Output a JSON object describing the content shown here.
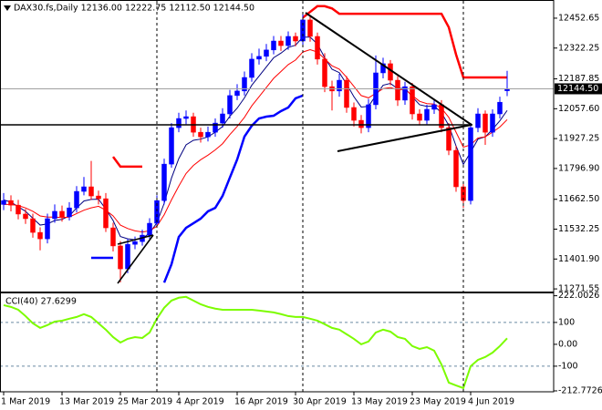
{
  "chart_data": [
    {
      "type": "candlestick",
      "title": "DAX30.fs,Daily  12136.00 12222.75 12112.50 12144.50",
      "categories": [
        "1 Mar 2019",
        null,
        null,
        null,
        null,
        null,
        null,
        null,
        "13 Mar 2019",
        null,
        null,
        null,
        null,
        null,
        null,
        null,
        "25 Mar 2019",
        null,
        null,
        null,
        null,
        null,
        null,
        null,
        "4 Apr 2019",
        null,
        null,
        null,
        null,
        null,
        null,
        null,
        "16 Apr 2019",
        null,
        null,
        null,
        null,
        null,
        null,
        null,
        "30 Apr 2019",
        null,
        null,
        null,
        null,
        null,
        null,
        null,
        "13 May 2019",
        null,
        null,
        null,
        null,
        null,
        null,
        null,
        "23 May 2019",
        null,
        null,
        null,
        null,
        null,
        null,
        null,
        "4 Jun 2019",
        null,
        null,
        null,
        null,
        null
      ],
      "open": [
        11640,
        11657,
        11637,
        11598,
        11578,
        11518,
        11490,
        11578,
        11610,
        11586,
        11625,
        11697,
        11717,
        11677,
        11665,
        11538,
        11459,
        11359,
        11466,
        11478,
        11506,
        11558,
        11657,
        11816,
        11975,
        12015,
        12023,
        11955,
        11935,
        11955,
        11995,
        12035,
        12115,
        12135,
        12194,
        12274,
        12286,
        12314,
        12353,
        12333,
        12373,
        12353,
        12445,
        12373,
        12274,
        12154,
        12135,
        12182,
        12063,
        12007,
        11975,
        12075,
        12214,
        12254,
        12182,
        12095,
        12154,
        12035,
        12007,
        12055,
        12075,
        11975,
        11876,
        11717,
        11657,
        11975,
        12035,
        11955,
        12035,
        12136
      ],
      "high": [
        11690,
        11680,
        11660,
        11620,
        11600,
        11540,
        11600,
        11640,
        11635,
        11650,
        11720,
        11760,
        11830,
        11700,
        11690,
        11560,
        11480,
        11490,
        11500,
        11530,
        11580,
        11680,
        11840,
        11995,
        12040,
        12050,
        12040,
        11975,
        11980,
        12015,
        12060,
        12140,
        12165,
        12220,
        12300,
        12320,
        12340,
        12375,
        12375,
        12395,
        12390,
        12480,
        12460,
        12390,
        12300,
        12180,
        12210,
        12200,
        12085,
        12030,
        12100,
        12290,
        12280,
        12270,
        12200,
        12175,
        12170,
        12055,
        12075,
        12100,
        12095,
        11995,
        11895,
        11735,
        11995,
        12060,
        12050,
        12055,
        12110,
        12222.75
      ],
      "low": [
        11615,
        11610,
        11575,
        11555,
        11495,
        11440,
        11470,
        11560,
        11565,
        11570,
        11605,
        11680,
        11660,
        11640,
        11520,
        11435,
        11300,
        11340,
        11445,
        11460,
        11490,
        11540,
        11640,
        11800,
        11955,
        11990,
        11935,
        11910,
        11915,
        11935,
        11975,
        12015,
        12095,
        12115,
        12175,
        12250,
        12265,
        12295,
        12310,
        12315,
        12330,
        12335,
        12350,
        12250,
        12130,
        12050,
        12110,
        12040,
        11980,
        11950,
        11955,
        12055,
        12190,
        12160,
        12070,
        12075,
        12010,
        11985,
        11990,
        12035,
        11955,
        11855,
        11695,
        11625,
        11640,
        11955,
        11900,
        11935,
        12015,
        12112.5
      ],
      "close": [
        11657,
        11637,
        11598,
        11578,
        11518,
        11490,
        11578,
        11610,
        11586,
        11625,
        11697,
        11717,
        11677,
        11665,
        11538,
        11459,
        11359,
        11466,
        11478,
        11506,
        11558,
        11657,
        11816,
        11975,
        12015,
        12023,
        11955,
        11935,
        11955,
        11995,
        12035,
        12115,
        12135,
        12194,
        12274,
        12286,
        12314,
        12353,
        12333,
        12373,
        12353,
        12445,
        12373,
        12274,
        12154,
        12135,
        12182,
        12063,
        12007,
        11975,
        12075,
        12214,
        12254,
        12182,
        12095,
        12154,
        12035,
        12007,
        12055,
        12075,
        11975,
        11876,
        11717,
        11657,
        11975,
        12035,
        11955,
        12035,
        12086,
        12144.5
      ],
      "up_color": "#0000ff",
      "down_color": "#ff0000",
      "last_price_label": "12144.50",
      "series": [
        {
          "color": "#000080",
          "width": 1,
          "values": [
            11660,
            11650,
            11630,
            11610,
            11580,
            11550,
            11555,
            11570,
            11575,
            11590,
            11625,
            11655,
            11662,
            11663,
            11620,
            11570,
            11500,
            11490,
            11486,
            11492,
            11515,
            11560,
            11645,
            11755,
            11840,
            11900,
            11920,
            11925,
            11935,
            11955,
            11980,
            12025,
            12060,
            12105,
            12160,
            12200,
            12240,
            12280,
            12300,
            12325,
            12335,
            12370,
            12370,
            12340,
            12280,
            12230,
            12215,
            12165,
            12110,
            12065,
            12068,
            12115,
            12160,
            12168,
            12145,
            12148,
            12110,
            12075,
            12068,
            12070,
            12040,
            11985,
            11895,
            11815,
            11868,
            11925,
            11935,
            11968,
            12005,
            12050
          ]
        },
        {
          "color": "#ff0000",
          "width": 1,
          "values": [
            11640,
            11640,
            11635,
            11625,
            11610,
            11590,
            11585,
            11585,
            11583,
            11585,
            11600,
            11615,
            11625,
            11632,
            11615,
            11590,
            11550,
            11535,
            11525,
            11520,
            11525,
            11545,
            11595,
            11660,
            11720,
            11775,
            11810,
            11835,
            11855,
            11878,
            11905,
            11945,
            11980,
            12020,
            12070,
            12110,
            12150,
            12190,
            12220,
            12250,
            12270,
            12305,
            12315,
            12305,
            12275,
            12245,
            12230,
            12195,
            12155,
            12115,
            12105,
            12125,
            12145,
            12150,
            12140,
            12142,
            12115,
            12090,
            12080,
            12078,
            12060,
            12020,
            11955,
            11890,
            11900,
            11930,
            11935,
            11955,
            11978,
            12010
          ]
        },
        {
          "color": "#0000ff",
          "width": 2.5,
          "values": [
            null,
            null,
            null,
            null,
            null,
            null,
            null,
            null,
            null,
            null,
            null,
            null,
            11407,
            11407,
            11407,
            11407,
            null,
            null,
            null,
            null,
            null,
            null,
            11299,
            11379,
            11498,
            11538,
            11558,
            11578,
            11610,
            11625,
            11677,
            11757,
            11836,
            11936,
            11983,
            12015,
            12023,
            12027,
            12047,
            12063,
            12103,
            12115,
            null,
            null,
            null,
            null,
            null,
            null,
            null,
            null,
            null,
            null,
            null,
            null,
            null,
            null,
            null,
            null,
            null,
            null,
            null,
            null,
            null,
            null,
            null,
            null,
            null,
            null,
            null,
            null
          ]
        },
        {
          "color": "#ff0000",
          "width": 2.5,
          "values": [
            null,
            null,
            null,
            null,
            null,
            null,
            null,
            null,
            null,
            null,
            null,
            null,
            null,
            null,
            null,
            11848,
            11805,
            11805,
            11805,
            11805,
            null,
            null,
            null,
            null,
            null,
            null,
            null,
            null,
            null,
            null,
            null,
            null,
            null,
            null,
            null,
            null,
            null,
            null,
            null,
            null,
            null,
            12455,
            12480,
            12505,
            12505,
            12495,
            12472,
            12472,
            12472,
            12472,
            12472,
            12472,
            12472,
            12472,
            12472,
            12472,
            12472,
            12472,
            12472,
            12472,
            12472,
            12413,
            12294,
            12194,
            12194,
            12194,
            12194,
            12194,
            12194,
            12194
          ]
        }
      ],
      "ylim": [
        11260,
        12520
      ],
      "yticks": [
        11271.55,
        {
          "value": 11401.9,
          "label": "11401.90"
        },
        11532.25,
        {
          "value": 11662.5,
          "label": "11662.50"
        },
        {
          "value": 11796.9,
          "label": "11796.90"
        },
        11927.25,
        {
          "value": 12057.6,
          "label": "12057.60"
        },
        12187.85,
        12322.25,
        12452.65
      ]
    },
    {
      "type": "line",
      "title": "CCI(40) 27.6299",
      "color": "#7cfc00",
      "values": [
        179,
        171,
        158,
        129,
        96,
        75,
        88,
        104,
        108,
        117,
        125,
        138,
        125,
        96,
        67,
        33,
        8,
        25,
        33,
        29,
        54,
        117,
        167,
        200,
        213,
        217,
        200,
        183,
        171,
        163,
        158,
        158,
        158,
        158,
        158,
        154,
        150,
        146,
        138,
        129,
        125,
        125,
        117,
        108,
        92,
        75,
        67,
        46,
        25,
        0,
        13,
        54,
        67,
        58,
        33,
        25,
        -8,
        -21,
        -13,
        -29,
        -92,
        -175,
        -188,
        -200,
        -100,
        -71,
        -58,
        -38,
        -8,
        27.6299
      ],
      "levels": [
        100,
        -100
      ],
      "ylim": [
        -217,
        237
      ],
      "yticks": [
        -212.7726,
        -100,
        {
          "value": 0,
          "label": "0.00"
        },
        100,
        222.0026
      ]
    }
  ]
}
